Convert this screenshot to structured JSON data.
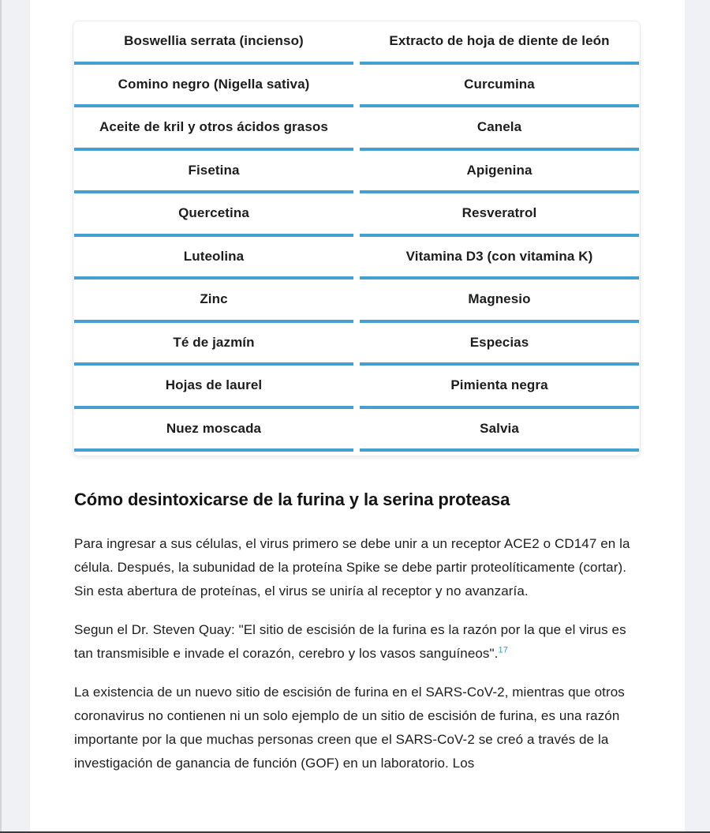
{
  "page": {
    "accent_color": "#45a0d1",
    "link_color": "#3a9ad9"
  },
  "supplement_table": {
    "rows": [
      {
        "left": "Boswellia serrata (incienso)",
        "right": "Extracto de hoja de diente de león"
      },
      {
        "left": "Comino negro (Nigella sativa)",
        "right": "Curcumina"
      },
      {
        "left": "Aceite de kril y otros ácidos grasos",
        "right": "Canela"
      },
      {
        "left": "Fisetina",
        "right": "Apigenina"
      },
      {
        "left": "Quercetina",
        "right": "Resveratrol"
      },
      {
        "left": "Luteolina",
        "right": "Vitamina D3 (con vitamina K)"
      },
      {
        "left": "Zinc",
        "right": "Magnesio"
      },
      {
        "left": "Té de jazmín",
        "right": "Especias"
      },
      {
        "left": "Hojas de laurel",
        "right": "Pimienta negra"
      },
      {
        "left": "Nuez moscada",
        "right": "Salvia"
      }
    ]
  },
  "article": {
    "heading": "Cómo desintoxicarse de la furina y la serina proteasa",
    "paragraph_1": "Para ingresar a sus células, el virus primero se debe unir a un receptor ACE2 o CD147 en la célula. Después, la subunidad de la proteína Spike se debe partir proteolíticamente (cortar). Sin esta abertura de proteínas, el virus se uniría al receptor y no avanzaría.",
    "paragraph_2_text": "Segun el Dr. Steven Quay: \"El sitio de escisión de la furina es la razón por la que el virus es tan transmisible e invade el corazón, cerebro y los vasos sanguíneos\".",
    "paragraph_2_footnote": "17",
    "paragraph_3": "La existencia de un nuevo sitio de escisión de furina en el SARS-CoV-2, mientras que otros coronavirus no contienen ni un solo ejemplo de un sitio de escisión de furina, es una razón importante por la que muchas personas creen que el SARS-CoV-2 se creó a través de la investigación de ganancia de función (GOF) en un laboratorio. Los"
  }
}
